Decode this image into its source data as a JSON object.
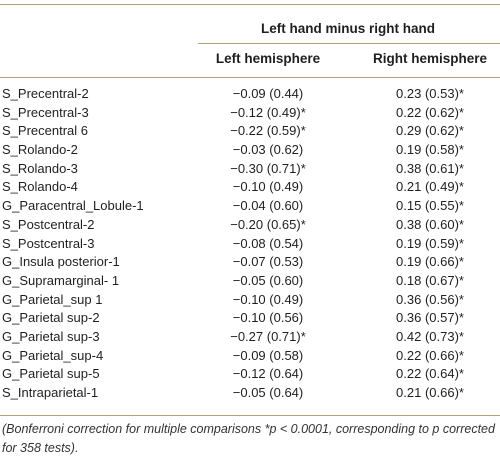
{
  "table": {
    "group_header": "Left hand minus right hand",
    "columns": {
      "left": "Left hemisphere",
      "right": "Right hemisphere"
    },
    "rows": [
      {
        "region": "S_Precentral-2",
        "left": "−0.09 (0.44)",
        "right": "0.23 (0.53)*"
      },
      {
        "region": "S_Precentral-3",
        "left": "−0.12 (0.49)*",
        "right": "0.22 (0.62)*"
      },
      {
        "region": "S_Precentral 6",
        "left": "−0.22 (0.59)*",
        "right": "0.29 (0.62)*"
      },
      {
        "region": "S_Rolando-2",
        "left": "−0.03 (0.62)",
        "right": "0.19 (0.58)*"
      },
      {
        "region": "S_Rolando-3",
        "left": "−0.30 (0.71)*",
        "right": "0.38 (0.61)*"
      },
      {
        "region": "S_Rolando-4",
        "left": "−0.10 (0.49)",
        "right": "0.21 (0.49)*"
      },
      {
        "region": "G_Paracentral_Lobule-1",
        "left": "−0.04 (0.60)",
        "right": "0.15 (0.55)*"
      },
      {
        "region": "S_Postcentral-2",
        "left": "−0.20 (0.65)*",
        "right": "0.38 (0.60)*"
      },
      {
        "region": "S_Postcentral-3",
        "left": "−0.08 (0.54)",
        "right": "0.19 (0.59)*"
      },
      {
        "region": "G_Insula posterior-1",
        "left": "−0.07 (0.53)",
        "right": "0.19 (0.66)*"
      },
      {
        "region": "G_Supramarginal- 1",
        "left": "−0.05 (0.60)",
        "right": "0.18 (0.67)*"
      },
      {
        "region": "G_Parietal_sup 1",
        "left": "−0.10 (0.49)",
        "right": "0.36 (0.56)*"
      },
      {
        "region": "G_Parietal sup-2",
        "left": "−0.10 (0.56)",
        "right": "0.36 (0.57)*"
      },
      {
        "region": "G_Parietal sup-3",
        "left": "−0.27 (0.71)*",
        "right": "0.42 (0.73)*"
      },
      {
        "region": "G_Parietal_sup-4",
        "left": "−0.09 (0.58)",
        "right": "0.22 (0.66)*"
      },
      {
        "region": "G_Parietal sup-5",
        "left": "−0.12 (0.64)",
        "right": "0.22 (0.64)*"
      },
      {
        "region": "S_Intraparietal-1",
        "left": "−0.05 (0.64)",
        "right": "0.21 (0.66)*"
      }
    ],
    "footnote": "(Bonferroni correction for multiple comparisons *p < 0.0001, corresponding to p corrected for 358 tests)."
  },
  "colors": {
    "rule": "#b8a07a",
    "text": "#1f1f1f"
  }
}
